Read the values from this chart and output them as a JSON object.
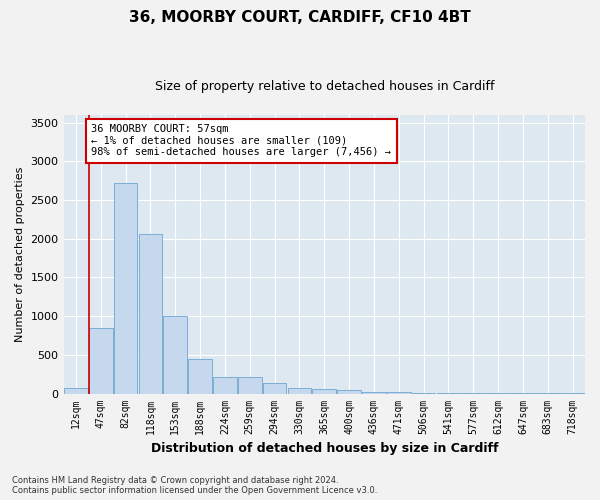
{
  "title1": "36, MOORBY COURT, CARDIFF, CF10 4BT",
  "title2": "Size of property relative to detached houses in Cardiff",
  "xlabel": "Distribution of detached houses by size in Cardiff",
  "ylabel": "Number of detached properties",
  "footnote1": "Contains HM Land Registry data © Crown copyright and database right 2024.",
  "footnote2": "Contains public sector information licensed under the Open Government Licence v3.0.",
  "bar_labels": [
    "12sqm",
    "47sqm",
    "82sqm",
    "118sqm",
    "153sqm",
    "188sqm",
    "224sqm",
    "259sqm",
    "294sqm",
    "330sqm",
    "365sqm",
    "400sqm",
    "436sqm",
    "471sqm",
    "506sqm",
    "541sqm",
    "577sqm",
    "612sqm",
    "647sqm",
    "683sqm",
    "718sqm"
  ],
  "bar_values": [
    70,
    850,
    2720,
    2060,
    1000,
    450,
    220,
    210,
    140,
    70,
    55,
    40,
    25,
    15,
    8,
    6,
    5,
    5,
    5,
    5,
    5
  ],
  "bar_color": "#c5d8ee",
  "bar_edgecolor": "#7badd4",
  "annotation_text": "36 MOORBY COURT: 57sqm\n← 1% of detached houses are smaller (109)\n98% of semi-detached houses are larger (7,456) →",
  "annotation_box_color": "#ffffff",
  "annotation_box_edgecolor": "#cc0000",
  "red_line_x": 0.525,
  "ylim": [
    0,
    3600
  ],
  "yticks": [
    0,
    500,
    1000,
    1500,
    2000,
    2500,
    3000,
    3500
  ],
  "background_color": "#dde8f0",
  "grid_color": "#ffffff",
  "fig_facecolor": "#f2f2f2"
}
